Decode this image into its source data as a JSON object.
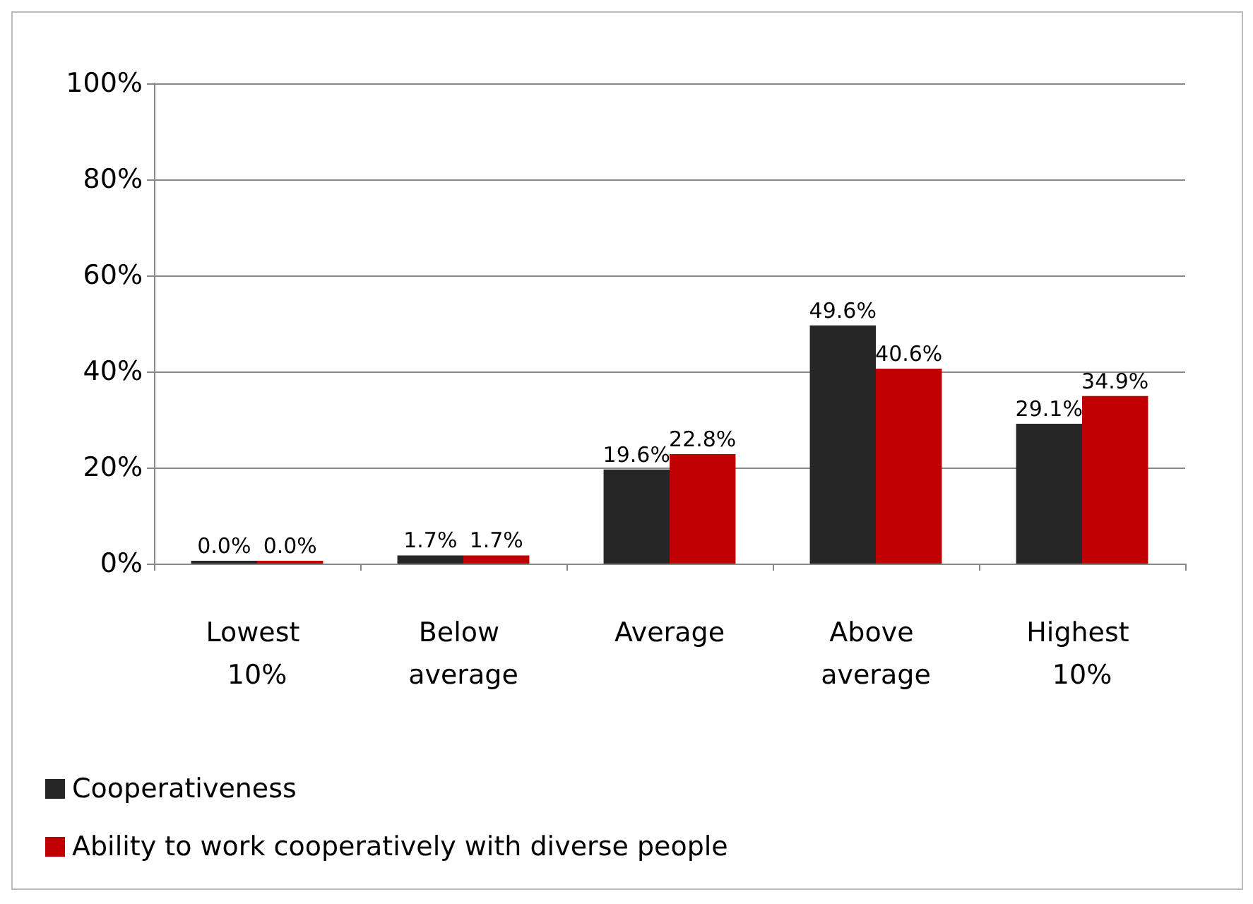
{
  "chart_data": {
    "type": "bar",
    "categories": [
      "Lowest 10%",
      "Below average",
      "Average",
      "Above average",
      "Highest 10%"
    ],
    "series": [
      {
        "name": "Cooperativeness",
        "color": "#262626",
        "values": [
          0,
          1.7,
          19.6,
          49.6,
          29.1
        ],
        "value_labels": [
          "0.0%",
          "1.7%",
          "19.6%",
          "49.6%",
          "29.1%"
        ]
      },
      {
        "name": "Ability to work cooperatively with diverse people",
        "color": "#c00000",
        "values": [
          0,
          1.7,
          22.8,
          40.6,
          34.9
        ],
        "value_labels": [
          "0.0%",
          "1.7%",
          "22.8%",
          "40.6%",
          "34.9%"
        ]
      }
    ],
    "ylim": [
      0,
      100
    ],
    "yticks": [
      {
        "value": 0,
        "label": "0%"
      },
      {
        "value": 20,
        "label": "20%"
      },
      {
        "value": 40,
        "label": "40%"
      },
      {
        "value": 60,
        "label": "60%"
      },
      {
        "value": 80,
        "label": "80%"
      },
      {
        "value": 100,
        "label": "100%"
      }
    ],
    "grid": "y",
    "legend": "bottom left"
  }
}
